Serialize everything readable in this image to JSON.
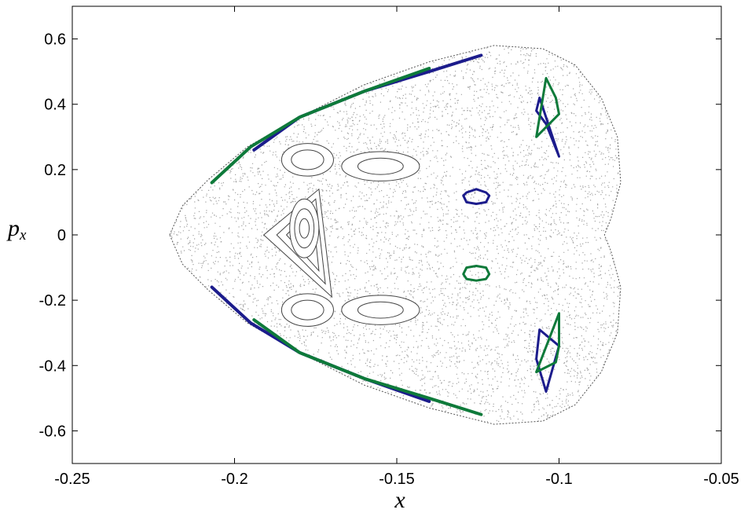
{
  "chart_data": {
    "type": "scatter",
    "title": "",
    "xlabel": "x",
    "ylabel": "p",
    "ylabel_subscript": "x",
    "xlim": [
      -0.25,
      -0.05
    ],
    "ylim": [
      -0.7,
      0.7
    ],
    "x_ticks": [
      -0.25,
      -0.2,
      -0.15,
      -0.1,
      -0.05
    ],
    "x_tick_labels": [
      "-0.25",
      "-0.2",
      "-0.15",
      "-0.1",
      "-0.05"
    ],
    "y_ticks": [
      -0.6,
      -0.4,
      -0.2,
      0,
      0.2,
      0.4,
      0.6
    ],
    "y_tick_labels": [
      "-0.6",
      "-0.4",
      "-0.2",
      "0",
      "0.2",
      "0.4",
      "0.6"
    ],
    "grid": false,
    "legend": "none",
    "colors": {
      "chaotic_sea": "#555555",
      "tori": "#444444",
      "blue": "#1c1c8c",
      "green": "#0e7a3a"
    },
    "chaotic_boundary": [
      [
        -0.22,
        0
      ],
      [
        -0.216,
        0.09
      ],
      [
        -0.208,
        0.17
      ],
      [
        -0.196,
        0.27
      ],
      [
        -0.18,
        0.36
      ],
      [
        -0.16,
        0.46
      ],
      [
        -0.14,
        0.53
      ],
      [
        -0.12,
        0.58
      ],
      [
        -0.105,
        0.57
      ],
      [
        -0.095,
        0.52
      ],
      [
        -0.087,
        0.42
      ],
      [
        -0.082,
        0.3
      ],
      [
        -0.081,
        0.16
      ],
      [
        -0.084,
        0.05
      ],
      [
        -0.086,
        0
      ],
      [
        -0.084,
        -0.05
      ],
      [
        -0.081,
        -0.16
      ],
      [
        -0.082,
        -0.3
      ],
      [
        -0.087,
        -0.42
      ],
      [
        -0.095,
        -0.52
      ],
      [
        -0.105,
        -0.57
      ],
      [
        -0.12,
        -0.58
      ],
      [
        -0.14,
        -0.53
      ],
      [
        -0.16,
        -0.46
      ],
      [
        -0.18,
        -0.36
      ],
      [
        -0.196,
        -0.27
      ],
      [
        -0.208,
        -0.17
      ],
      [
        -0.216,
        -0.09
      ]
    ],
    "tori": [
      {
        "type": "triangle",
        "points": [
          [
            -0.191,
            0.0
          ],
          [
            -0.174,
            0.14
          ],
          [
            -0.17,
            -0.19
          ]
        ]
      },
      {
        "type": "triangle",
        "points": [
          [
            -0.187,
            0.0
          ],
          [
            -0.175,
            0.11
          ],
          [
            -0.172,
            -0.15
          ]
        ]
      },
      {
        "type": "triangle",
        "points": [
          [
            -0.184,
            0.0
          ],
          [
            -0.176,
            0.08
          ],
          [
            -0.174,
            -0.11
          ]
        ]
      },
      {
        "type": "ellipse",
        "cx": -0.1785,
        "cy": 0.02,
        "rx": 0.0045,
        "ry": 0.09
      },
      {
        "type": "ellipse",
        "cx": -0.1785,
        "cy": 0.02,
        "rx": 0.003,
        "ry": 0.06
      },
      {
        "type": "ellipse",
        "cx": -0.1785,
        "cy": 0.02,
        "rx": 0.0015,
        "ry": 0.03
      },
      {
        "type": "ellipse",
        "cx": -0.1775,
        "cy": 0.23,
        "rx": 0.008,
        "ry": 0.05
      },
      {
        "type": "ellipse",
        "cx": -0.1775,
        "cy": 0.23,
        "rx": 0.005,
        "ry": 0.03
      },
      {
        "type": "ellipse",
        "cx": -0.1775,
        "cy": -0.23,
        "rx": 0.008,
        "ry": 0.05
      },
      {
        "type": "ellipse",
        "cx": -0.1775,
        "cy": -0.23,
        "rx": 0.005,
        "ry": 0.03
      },
      {
        "type": "ellipse",
        "cx": -0.155,
        "cy": 0.21,
        "rx": 0.012,
        "ry": 0.045
      },
      {
        "type": "ellipse",
        "cx": -0.155,
        "cy": 0.21,
        "rx": 0.007,
        "ry": 0.025
      },
      {
        "type": "ellipse",
        "cx": -0.155,
        "cy": -0.23,
        "rx": 0.012,
        "ry": 0.045
      },
      {
        "type": "ellipse",
        "cx": -0.155,
        "cy": -0.23,
        "rx": 0.007,
        "ry": 0.025
      }
    ],
    "series": [
      {
        "color": "blue",
        "points": [
          [
            -0.194,
            0.26
          ],
          [
            -0.18,
            0.36
          ],
          [
            -0.16,
            0.44
          ],
          [
            -0.14,
            0.5
          ],
          [
            -0.124,
            0.55
          ]
        ]
      },
      {
        "color": "green",
        "points": [
          [
            -0.207,
            0.16
          ],
          [
            -0.195,
            0.27
          ],
          [
            -0.18,
            0.36
          ],
          [
            -0.16,
            0.44
          ],
          [
            -0.14,
            0.51
          ]
        ]
      },
      {
        "color": "blue",
        "points": [
          [
            -0.207,
            -0.16
          ],
          [
            -0.195,
            -0.27
          ],
          [
            -0.18,
            -0.36
          ],
          [
            -0.16,
            -0.44
          ],
          [
            -0.14,
            -0.51
          ]
        ]
      },
      {
        "color": "green",
        "points": [
          [
            -0.194,
            -0.26
          ],
          [
            -0.18,
            -0.36
          ],
          [
            -0.16,
            -0.44
          ],
          [
            -0.14,
            -0.5
          ],
          [
            -0.124,
            -0.55
          ]
        ]
      },
      {
        "color": "blue",
        "closed": true,
        "points": [
          [
            -0.1255,
            0.14
          ],
          [
            -0.1225,
            0.13
          ],
          [
            -0.1215,
            0.12
          ],
          [
            -0.1225,
            0.1
          ],
          [
            -0.1255,
            0.095
          ],
          [
            -0.1285,
            0.1
          ],
          [
            -0.1295,
            0.12
          ],
          [
            -0.1285,
            0.13
          ]
        ]
      },
      {
        "color": "green",
        "closed": true,
        "points": [
          [
            -0.1255,
            -0.095
          ],
          [
            -0.1225,
            -0.1
          ],
          [
            -0.1215,
            -0.12
          ],
          [
            -0.1225,
            -0.135
          ],
          [
            -0.1255,
            -0.14
          ],
          [
            -0.1285,
            -0.135
          ],
          [
            -0.1295,
            -0.12
          ],
          [
            -0.1285,
            -0.1
          ]
        ]
      },
      {
        "color": "blue",
        "closed": true,
        "points": [
          [
            -0.106,
            0.42
          ],
          [
            -0.1,
            0.24
          ],
          [
            -0.104,
            0.34
          ],
          [
            -0.107,
            0.38
          ]
        ]
      },
      {
        "color": "green",
        "closed": true,
        "points": [
          [
            -0.104,
            0.48
          ],
          [
            -0.107,
            0.3
          ],
          [
            -0.1,
            0.37
          ],
          [
            -0.101,
            0.42
          ]
        ]
      },
      {
        "color": "blue",
        "closed": true,
        "points": [
          [
            -0.106,
            -0.29
          ],
          [
            -0.1,
            -0.34
          ],
          [
            -0.104,
            -0.48
          ],
          [
            -0.107,
            -0.38
          ]
        ]
      },
      {
        "color": "green",
        "closed": true,
        "points": [
          [
            -0.1,
            -0.24
          ],
          [
            -0.107,
            -0.42
          ],
          [
            -0.101,
            -0.39
          ],
          [
            -0.1,
            -0.34
          ]
        ]
      }
    ]
  }
}
